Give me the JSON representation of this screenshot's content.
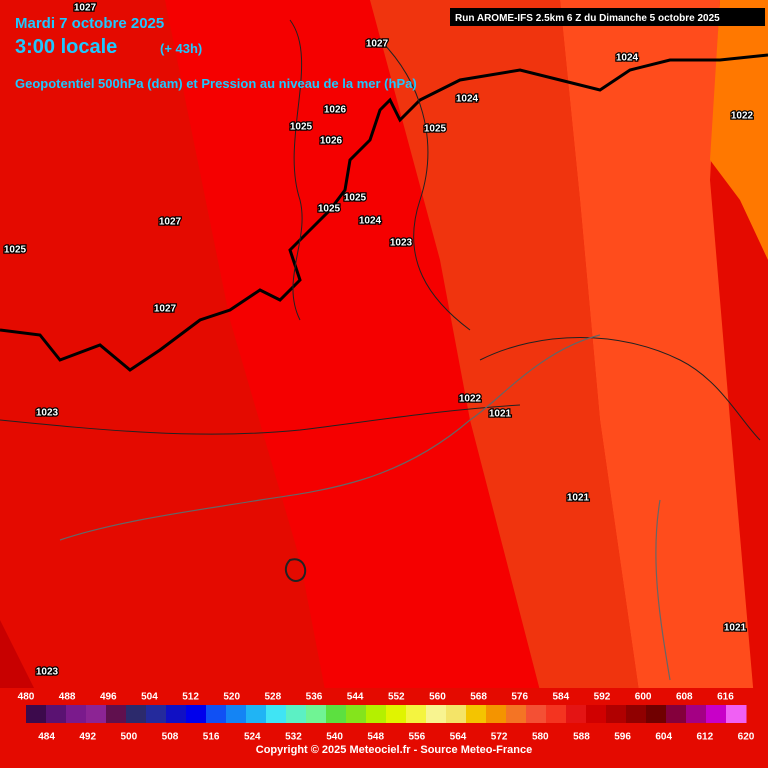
{
  "header": {
    "date": "Mardi 7 octobre 2025",
    "time": "3:00 locale",
    "lead": "(+ 43h)",
    "subtitle": "Geopotentiel 500hPa (dam) et Pression au niveau de la mer (hPa)",
    "run": "Run AROME-IFS 2.5km 6 Z du Dimanche 5 octobre 2025"
  },
  "pressure_labels": [
    "1027",
    "1027",
    "1024",
    "1024",
    "1022",
    "1026",
    "1025",
    "1026",
    "1025",
    "1027",
    "1025",
    "1025",
    "1024",
    "1023",
    "1025",
    "1027",
    "1022",
    "1021",
    "1023",
    "1021",
    "1021",
    "1023"
  ],
  "colorbar": {
    "top_ticks": [
      480,
      488,
      496,
      504,
      512,
      520,
      528,
      536,
      544,
      552,
      560,
      568,
      576,
      584,
      592,
      600,
      608,
      616
    ],
    "bottom_ticks": [
      484,
      492,
      500,
      508,
      516,
      524,
      532,
      540,
      548,
      556,
      564,
      572,
      580,
      588,
      596,
      604,
      612,
      620
    ],
    "colors": [
      "#3c0a4c",
      "#5a1272",
      "#7a1a8c",
      "#8c2494",
      "#60104e",
      "#2c2a6c",
      "#242a9c",
      "#1010c4",
      "#0000ec",
      "#1050f4",
      "#1484f4",
      "#20b4f4",
      "#40e4f4",
      "#5cf0c4",
      "#70f494",
      "#5ce040",
      "#84e41c",
      "#b4f000",
      "#e0f400",
      "#f4f440",
      "#f8f490",
      "#f4e468",
      "#f4c400",
      "#f49400",
      "#f47424",
      "#f45034",
      "#f43420",
      "#e41414",
      "#d00000",
      "#b00000",
      "#900000",
      "#700000",
      "#84003c",
      "#a40084",
      "#c800c8",
      "#f060f4"
    ]
  },
  "footer": {
    "copyright": "Copyright © 2025 Meteociel.fr - Source Meteo-France"
  }
}
